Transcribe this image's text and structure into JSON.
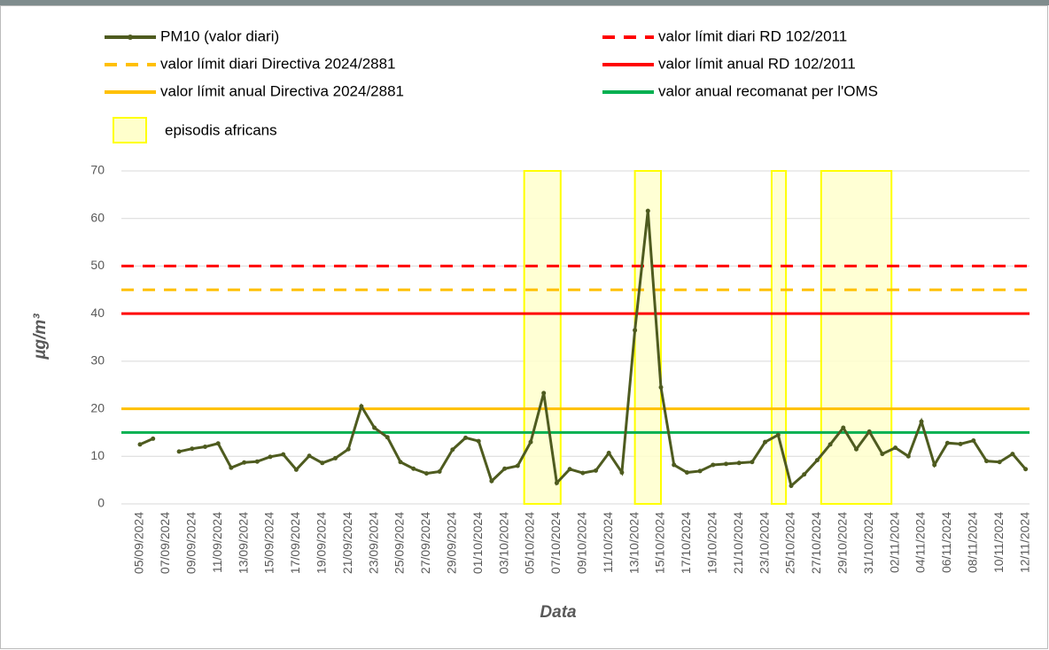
{
  "chart_data": {
    "type": "line",
    "x_label": "Data",
    "y_label": "µg/m³",
    "categories": [
      "05/09/2024",
      null,
      "07/09/2024",
      null,
      "09/09/2024",
      null,
      "11/09/2024",
      null,
      "13/09/2024",
      null,
      "15/09/2024",
      null,
      "17/09/2024",
      null,
      "19/09/2024",
      null,
      "21/09/2024",
      null,
      "23/09/2024",
      null,
      "25/09/2024",
      null,
      "27/09/2024",
      null,
      "29/09/2024",
      null,
      "01/10/2024",
      null,
      "03/10/2024",
      null,
      "05/10/2024",
      null,
      "07/10/2024",
      null,
      "09/10/2024",
      null,
      "11/10/2024",
      null,
      "13/10/2024",
      null,
      "15/10/2024",
      null,
      "17/10/2024",
      null,
      "19/10/2024",
      null,
      "21/10/2024",
      null,
      "23/10/2024",
      null,
      "25/10/2024",
      null,
      "27/10/2024",
      null,
      "29/10/2024",
      null,
      "31/10/2024",
      null,
      "02/11/2024",
      null,
      "04/11/2024",
      null,
      "06/11/2024",
      null,
      "08/11/2024",
      null,
      "10/11/2024",
      null,
      "12/11/2024"
    ],
    "series": [
      {
        "name": "PM10 (valor diari)",
        "color": "#4e5b1f",
        "values": [
          12.5,
          13.7,
          null,
          11.0,
          11.6,
          12.0,
          12.7,
          7.6,
          8.7,
          8.9,
          9.9,
          10.4,
          7.2,
          10.1,
          8.6,
          9.6,
          11.5,
          20.5,
          16,
          14,
          8.8,
          7.4,
          6.4,
          6.8,
          11.4,
          13.9,
          13.2,
          4.8,
          7.4,
          8.0,
          13,
          23.3,
          4.4,
          7.3,
          6.5,
          7.0,
          10.7,
          6.6,
          36.5,
          61.6,
          24.5,
          8.2,
          6.6,
          6.9,
          8.2,
          8.4,
          8.6,
          8.8,
          13,
          14.5,
          3.8,
          6.2,
          9.2,
          12.5,
          16,
          11.5,
          15.2,
          10.5,
          11.8,
          10,
          17.3,
          8.2,
          12.8,
          12.6,
          13.3,
          9,
          8.8,
          10.5,
          7.3
        ]
      }
    ],
    "reference_lines": [
      {
        "name": "valor límit diari RD 102/2011",
        "color": "#ff0000",
        "value": 50,
        "dashed": true
      },
      {
        "name": "valor límit diari Directiva 2024/2881",
        "color": "#ffc000",
        "value": 45,
        "dashed": true
      },
      {
        "name": "valor límit anual RD 102/2011",
        "color": "#ff0000",
        "value": 40,
        "dashed": false
      },
      {
        "name": "valor límit anual  Directiva 2024/2881",
        "color": "#ffc000",
        "value": 20,
        "dashed": false
      },
      {
        "name": "valor anual recomanat per l'OMS",
        "color": "#00b050",
        "value": 15,
        "dashed": false
      }
    ],
    "episodes": {
      "name": "episodis africans",
      "color": "#ffffcc",
      "border": "#ffff00",
      "ranges": [
        [
          29.5,
          32.3
        ],
        [
          38,
          40
        ],
        [
          48.5,
          49.6
        ],
        [
          52.3,
          57.7
        ]
      ]
    },
    "ylim": [
      0,
      70
    ],
    "yticks": [
      0,
      10,
      20,
      30,
      40,
      50,
      60,
      70
    ],
    "grid": true
  }
}
